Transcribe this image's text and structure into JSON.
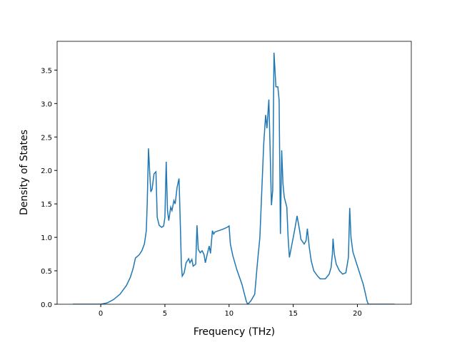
{
  "chart_data": {
    "type": "line",
    "xlabel": "Frequency (THz)",
    "ylabel": "Density of States",
    "color": "#1f77b4",
    "x": [
      -2.17,
      0,
      0.5,
      1,
      1.5,
      2,
      2.3,
      2.5,
      2.6,
      2.7,
      3.0,
      3.2,
      3.4,
      3.55,
      3.62,
      3.68,
      3.72,
      3.82,
      3.9,
      4.0,
      4.15,
      4.3,
      4.4,
      4.55,
      4.75,
      4.9,
      5.0,
      5.1,
      5.2,
      5.3,
      5.45,
      5.55,
      5.7,
      5.8,
      5.95,
      6.1,
      6.2,
      6.28,
      6.35,
      6.5,
      6.65,
      6.85,
      6.95,
      7.1,
      7.2,
      7.4,
      7.5,
      7.6,
      7.75,
      7.9,
      8.05,
      8.15,
      8.3,
      8.45,
      8.55,
      8.7,
      8.8,
      8.9,
      9.5,
      9.85,
      10.0,
      10.1,
      10.3,
      10.6,
      11.0,
      11.2,
      11.35,
      11.45,
      11.7,
      12.0,
      12.2,
      12.4,
      12.55,
      12.7,
      12.85,
      12.95,
      13.1,
      13.2,
      13.3,
      13.4,
      13.5,
      13.65,
      13.8,
      13.9,
      14.0,
      14.1,
      14.2,
      14.3,
      14.5,
      14.6,
      14.7,
      14.9,
      15.1,
      15.3,
      15.5,
      15.6,
      15.85,
      16.0,
      16.1,
      16.25,
      16.4,
      16.6,
      16.9,
      17.1,
      17.5,
      17.8,
      17.95,
      18.05,
      18.1,
      18.2,
      18.35,
      18.6,
      18.85,
      19.1,
      19.3,
      19.4,
      19.5,
      19.65,
      19.95,
      20.2,
      20.45,
      20.6,
      20.75,
      20.85,
      22.9
    ],
    "y": [
      0,
      0,
      0.02,
      0.07,
      0.15,
      0.28,
      0.4,
      0.52,
      0.6,
      0.69,
      0.74,
      0.8,
      0.9,
      1.1,
      1.5,
      2.0,
      2.33,
      1.95,
      1.68,
      1.72,
      1.95,
      1.98,
      1.3,
      1.18,
      1.15,
      1.17,
      1.3,
      2.13,
      1.4,
      1.25,
      1.45,
      1.4,
      1.55,
      1.5,
      1.75,
      1.88,
      1.2,
      0.6,
      0.42,
      0.47,
      0.62,
      0.68,
      0.62,
      0.67,
      0.57,
      0.6,
      1.18,
      0.82,
      0.77,
      0.8,
      0.74,
      0.62,
      0.75,
      0.87,
      0.76,
      1.1,
      1.05,
      1.08,
      1.12,
      1.15,
      1.17,
      0.9,
      0.72,
      0.52,
      0.3,
      0.15,
      0.04,
      0.0,
      0.05,
      0.15,
      0.6,
      1.0,
      1.7,
      2.4,
      2.83,
      2.63,
      3.06,
      2.3,
      1.48,
      1.7,
      3.76,
      3.25,
      3.25,
      3.05,
      1.05,
      2.3,
      1.8,
      1.6,
      1.45,
      1.0,
      0.7,
      0.9,
      1.1,
      1.32,
      1.1,
      0.97,
      0.9,
      0.95,
      1.13,
      0.85,
      0.65,
      0.5,
      0.42,
      0.38,
      0.38,
      0.45,
      0.55,
      0.75,
      0.98,
      0.75,
      0.6,
      0.5,
      0.45,
      0.47,
      0.7,
      1.44,
      1.0,
      0.78,
      0.6,
      0.45,
      0.3,
      0.18,
      0.05,
      0.0,
      0.0
    ],
    "xlim": [
      -3.4,
      24.2
    ],
    "xticks": [
      0,
      5,
      10,
      15,
      20
    ],
    "ylim": [
      0,
      3.93
    ],
    "yticks": [
      {
        "value": 0,
        "label": "0.0"
      },
      0.5,
      {
        "value": 1,
        "label": "1.0"
      },
      1.5,
      {
        "value": 2,
        "label": "2.0"
      },
      2.5,
      {
        "value": 3,
        "label": "3.0"
      },
      3.5
    ]
  }
}
